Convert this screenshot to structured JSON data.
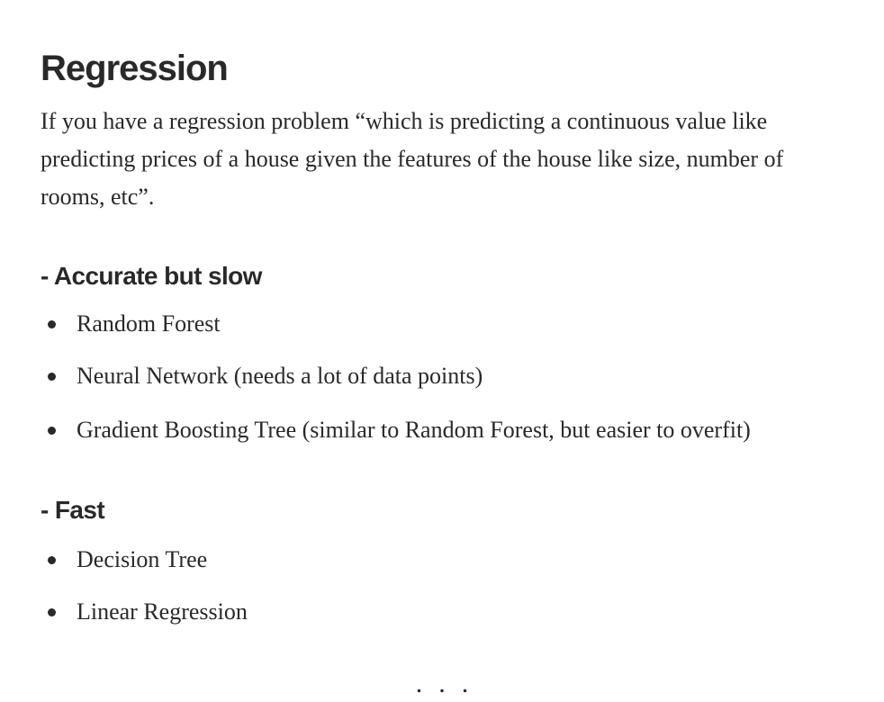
{
  "article": {
    "title": "Regression",
    "intro": "If you have a regression problem “which is predicting a continuous value like predicting prices of a house given the features of the house like size, number of rooms, etc”.",
    "sections": [
      {
        "heading": "- Accurate but slow",
        "items": [
          {
            "link": "Random Forest",
            "note": ""
          },
          {
            "link": "Neural Network",
            "note": " (needs a lot of data points)"
          },
          {
            "link": "Gradient Boosting Tree",
            "note": " (similar to Random Forest, but easier to overfit)"
          }
        ]
      },
      {
        "heading": "- Fast",
        "items": [
          {
            "link": "Decision Tree",
            "note": ""
          },
          {
            "link": "Linear Regression",
            "note": ""
          }
        ]
      }
    ],
    "separator": "..."
  }
}
